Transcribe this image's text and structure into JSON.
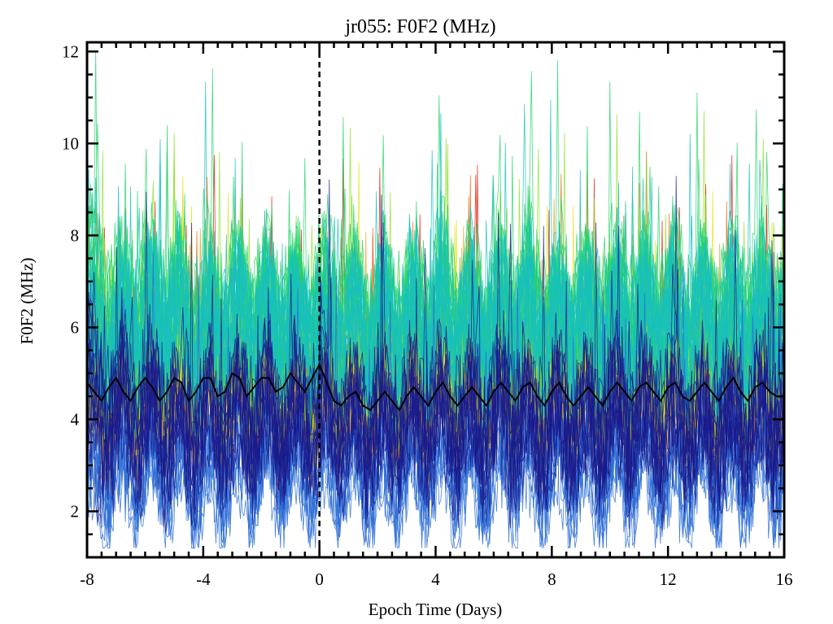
{
  "chart_data": {
    "type": "line",
    "title": "jr055: F0F2 (MHz)",
    "xlabel": "Epoch Time (Days)",
    "ylabel": "F0F2 (MHz)",
    "xlim": [
      -8,
      16
    ],
    "ylim": [
      1,
      12.2
    ],
    "x_ticks": [
      -8,
      -4,
      0,
      4,
      8,
      12,
      16
    ],
    "y_ticks": [
      2,
      4,
      6,
      8,
      10,
      12
    ],
    "x_minor_step": 0.5,
    "y_minor_step": 0.5,
    "grid": false,
    "epoch_marker": {
      "x": 0,
      "style": "dashed",
      "color": "#000000"
    },
    "bundle": {
      "description_color_scale": [
        "#1a1a8c",
        "#2a6cd6",
        "#18c0c0",
        "#25d46a",
        "#8ee02c",
        "#e6e01a",
        "#f5a21a",
        "#f06a10",
        "#e81c0a"
      ],
      "traces_per_band": 12,
      "bands": [
        {
          "color": "#e81c0a",
          "center": 5.2,
          "spread": 1.3
        },
        {
          "color": "#f06a10",
          "center": 4.6,
          "spread": 1.5
        },
        {
          "color": "#f5a21a",
          "center": 4.2,
          "spread": 1.8
        },
        {
          "color": "#e6e01a",
          "center": 4.8,
          "spread": 2.0
        },
        {
          "color": "#8ee02c",
          "center": 5.6,
          "spread": 2.4
        },
        {
          "color": "#25d46a",
          "center": 6.5,
          "spread": 2.6
        },
        {
          "color": "#18c0c0",
          "center": 6.0,
          "spread": 3.0
        },
        {
          "color": "#2a6cd6",
          "center": 3.0,
          "spread": 2.2
        },
        {
          "color": "#1a1a8c",
          "center": 4.0,
          "spread": 2.8
        }
      ]
    },
    "series": [
      {
        "color": "#000000",
        "x": [
          -8.0,
          -7.75,
          -7.5,
          -7.25,
          -7.0,
          -6.75,
          -6.5,
          -6.25,
          -6.0,
          -5.75,
          -5.5,
          -5.25,
          -5.0,
          -4.75,
          -4.5,
          -4.25,
          -4.0,
          -3.75,
          -3.5,
          -3.25,
          -3.0,
          -2.75,
          -2.5,
          -2.25,
          -2.0,
          -1.75,
          -1.5,
          -1.25,
          -1.0,
          -0.75,
          -0.5,
          -0.25,
          0.0,
          0.25,
          0.5,
          0.75,
          1.0,
          1.25,
          1.5,
          1.75,
          2.0,
          2.25,
          2.5,
          2.75,
          3.0,
          3.25,
          3.5,
          3.75,
          4.0,
          4.25,
          4.5,
          4.75,
          5.0,
          5.25,
          5.5,
          5.75,
          6.0,
          6.25,
          6.5,
          6.75,
          7.0,
          7.25,
          7.5,
          7.75,
          8.0,
          8.25,
          8.5,
          8.75,
          9.0,
          9.25,
          9.5,
          9.75,
          10.0,
          10.25,
          10.5,
          10.75,
          11.0,
          11.25,
          11.5,
          11.75,
          12.0,
          12.25,
          12.5,
          12.75,
          13.0,
          13.25,
          13.5,
          13.75,
          14.0,
          14.25,
          14.5,
          14.75,
          15.0,
          15.25,
          15.5,
          15.75,
          16.0
        ],
        "y": [
          4.8,
          4.6,
          4.4,
          4.7,
          4.9,
          4.6,
          4.4,
          4.7,
          4.9,
          4.7,
          4.4,
          4.6,
          4.9,
          4.8,
          4.4,
          4.6,
          4.9,
          4.9,
          4.5,
          4.6,
          5.0,
          4.9,
          4.5,
          4.7,
          4.9,
          4.9,
          4.6,
          4.7,
          5.0,
          4.8,
          4.6,
          4.9,
          5.2,
          4.8,
          4.4,
          4.3,
          4.5,
          4.6,
          4.3,
          4.2,
          4.4,
          4.6,
          4.4,
          4.2,
          4.5,
          4.7,
          4.5,
          4.3,
          4.6,
          4.8,
          4.5,
          4.3,
          4.5,
          4.7,
          4.5,
          4.3,
          4.6,
          4.8,
          4.6,
          4.4,
          4.7,
          4.8,
          4.5,
          4.3,
          4.6,
          4.8,
          4.5,
          4.3,
          4.5,
          4.7,
          4.5,
          4.3,
          4.6,
          4.8,
          4.6,
          4.4,
          4.7,
          4.8,
          4.6,
          4.4,
          4.7,
          4.8,
          4.5,
          4.4,
          4.6,
          4.8,
          4.6,
          4.4,
          4.7,
          4.9,
          4.6,
          4.4,
          4.7,
          4.8,
          4.6,
          4.5,
          4.5
        ]
      }
    ]
  }
}
